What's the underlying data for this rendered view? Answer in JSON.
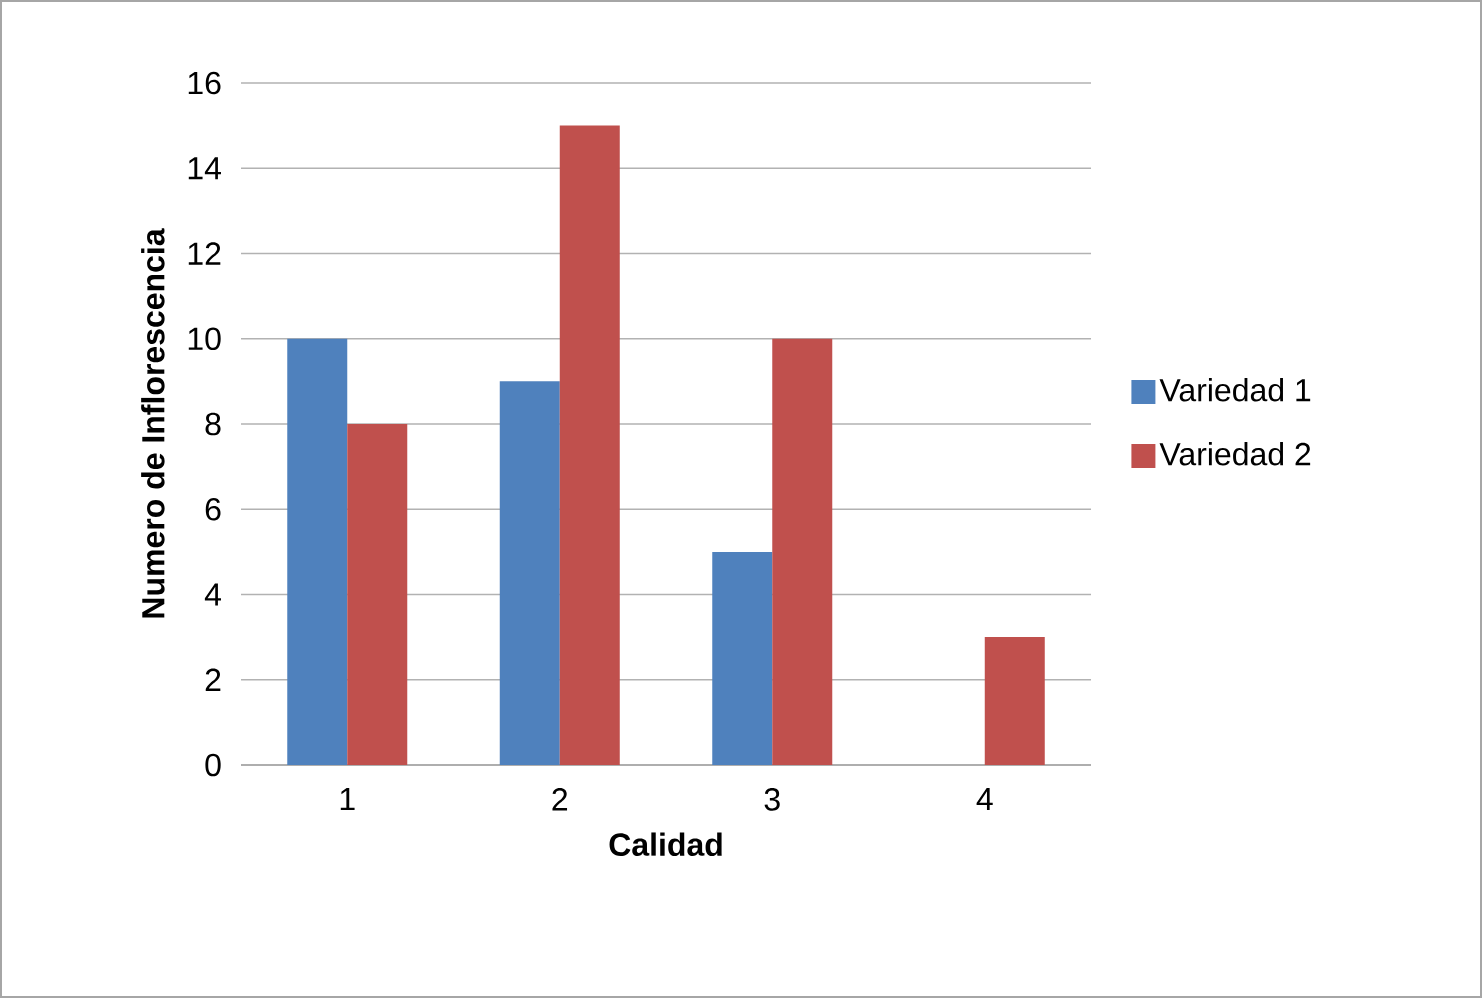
{
  "chart_data": {
    "type": "bar",
    "xlabel": "Calidad",
    "ylabel": "Numero de Inflorescencia",
    "categories": [
      "1",
      "2",
      "3",
      "4"
    ],
    "series": [
      {
        "name": "Variedad 1",
        "color": "#4f81bd",
        "values": [
          10,
          9,
          5,
          null
        ]
      },
      {
        "name": "Variedad 2",
        "color": "#c0504d",
        "values": [
          8,
          15,
          10,
          3
        ]
      }
    ],
    "ylim": [
      0,
      16
    ],
    "yticks": [
      0,
      2,
      4,
      6,
      8,
      10,
      12,
      14,
      16
    ],
    "grid": "y",
    "legend": "right"
  }
}
